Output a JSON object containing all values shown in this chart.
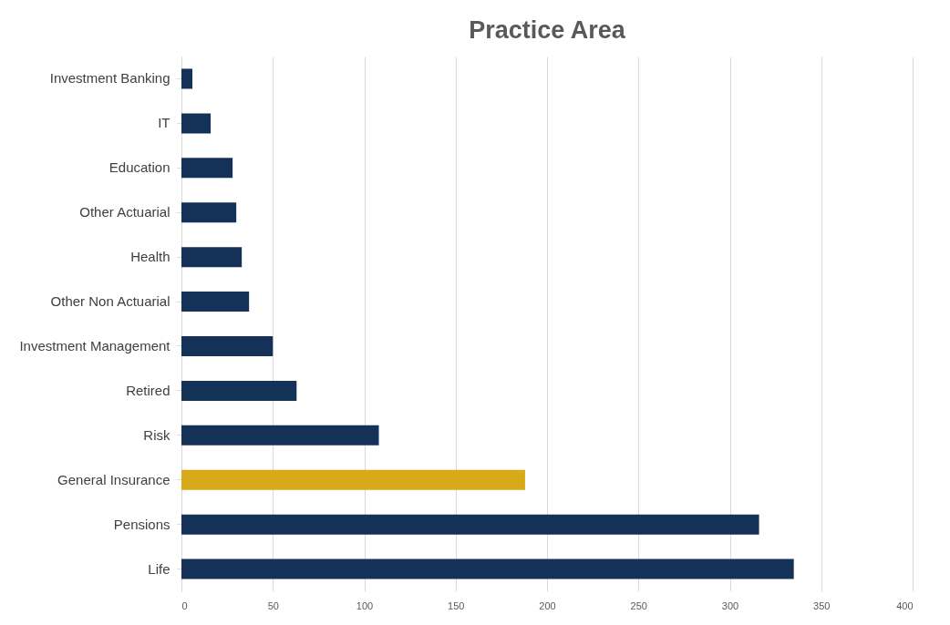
{
  "chart_data": {
    "type": "bar",
    "orientation": "horizontal",
    "title": "Practice Area",
    "categories": [
      "Investment Banking",
      "IT",
      "Education",
      "Other Actuarial",
      "Health",
      "Other Non Actuarial",
      "Investment Management",
      "Retired",
      "Risk",
      "General Insurance",
      "Pensions",
      "Life"
    ],
    "values": [
      6,
      16,
      28,
      30,
      33,
      37,
      50,
      63,
      108,
      188,
      316,
      335
    ],
    "colors": [
      "#143257",
      "#143257",
      "#143257",
      "#143257",
      "#143257",
      "#143257",
      "#143257",
      "#143257",
      "#143257",
      "#d8a919",
      "#143257",
      "#143257"
    ],
    "xlim": [
      0,
      400
    ],
    "xticks": [
      0,
      50,
      100,
      150,
      200,
      250,
      300,
      350,
      400
    ],
    "grid": "x"
  }
}
